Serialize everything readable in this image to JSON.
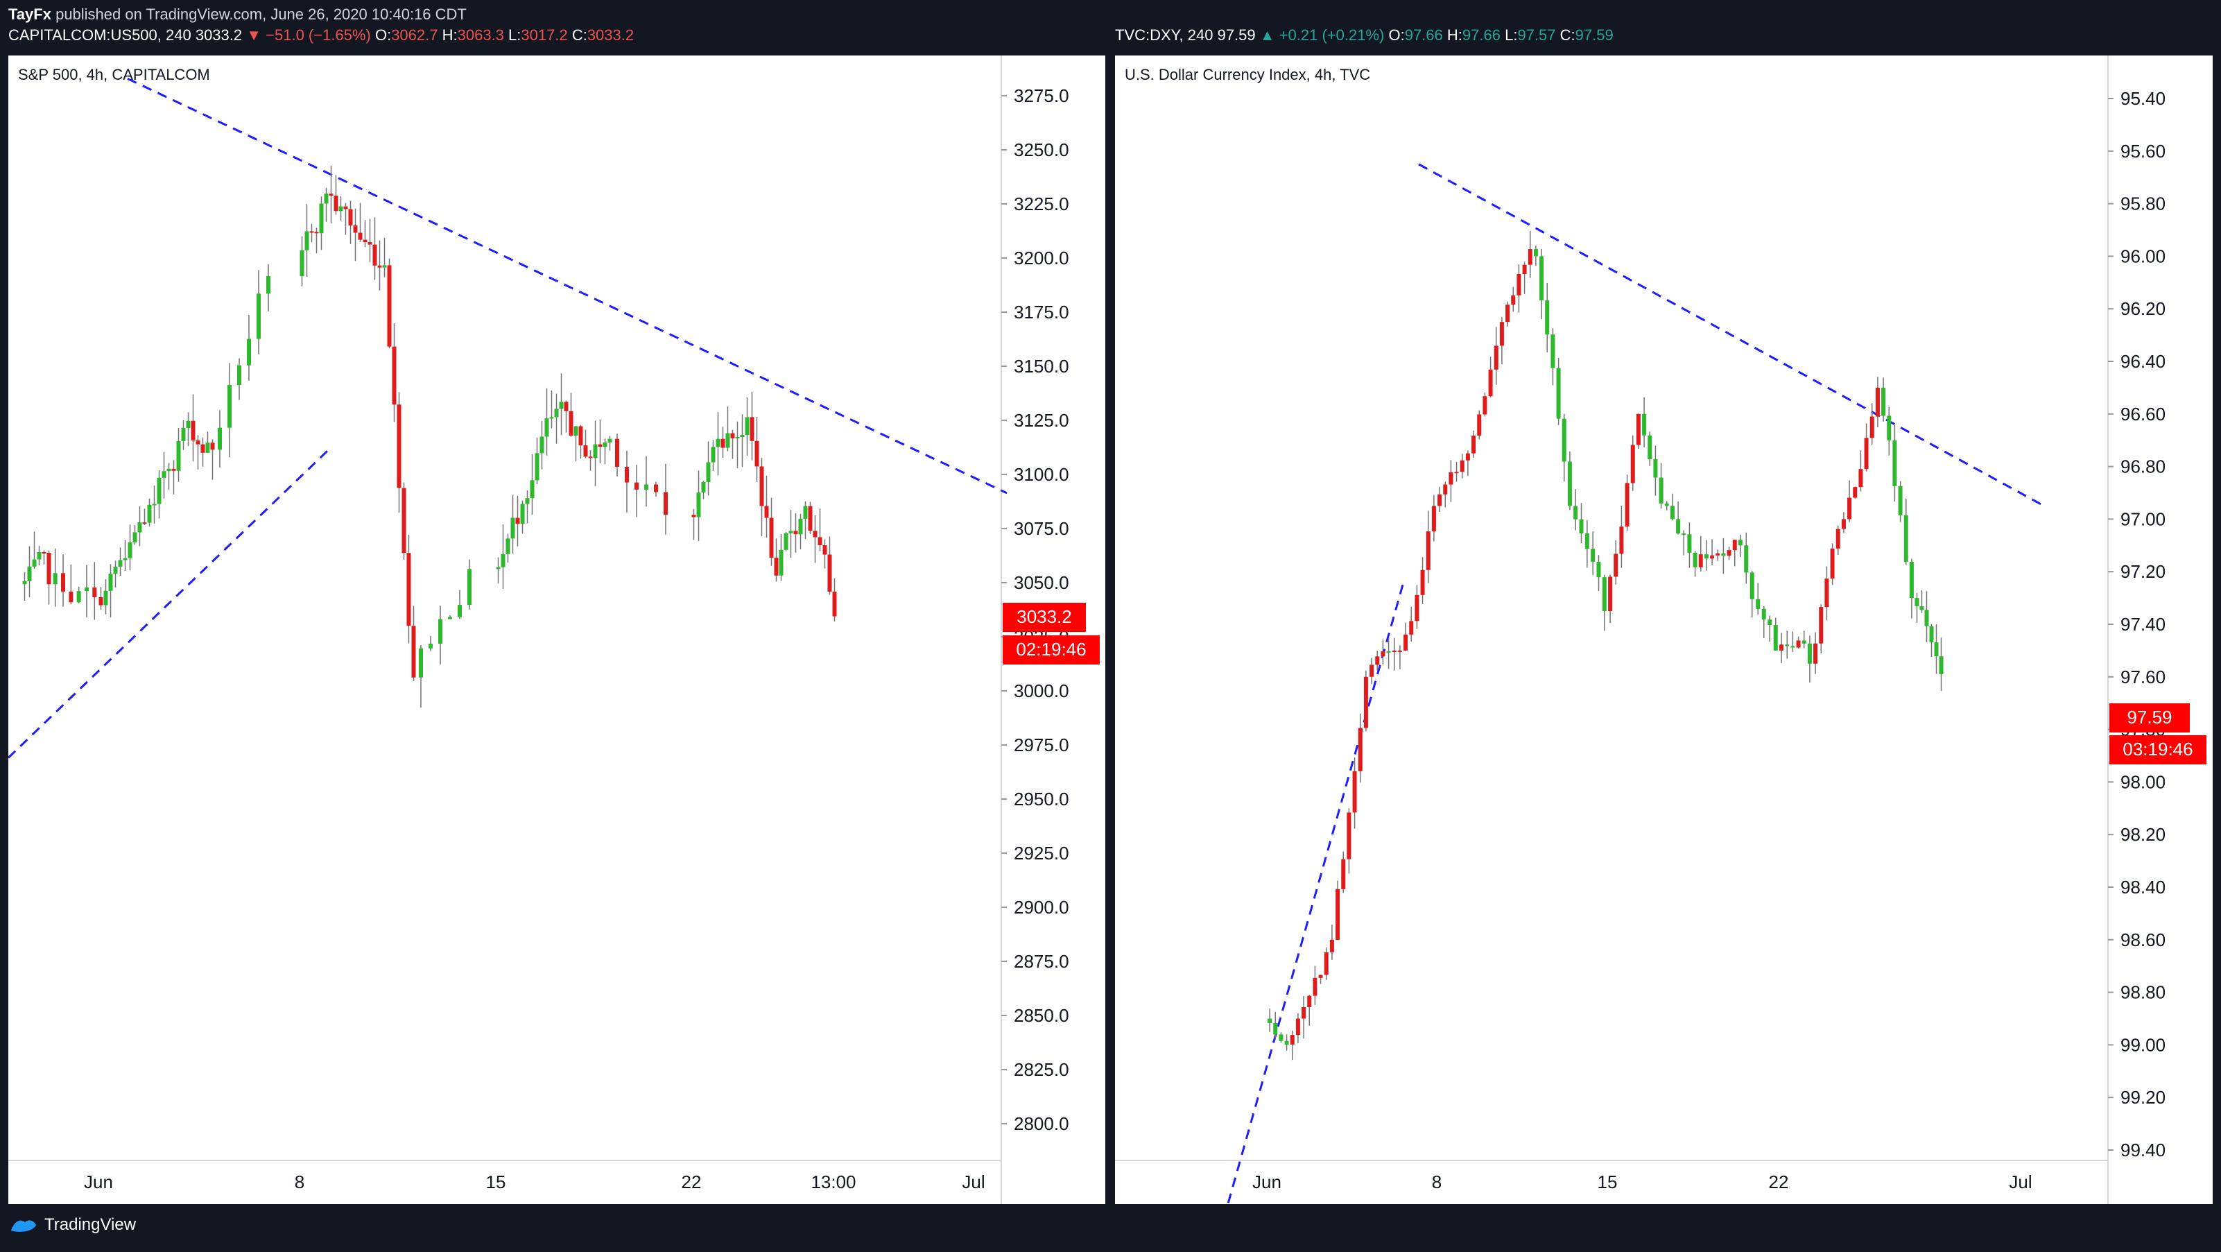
{
  "publisher": {
    "author": "TayFx",
    "text": "published on TradingView.com, June 26, 2020 10:40:16 CDT"
  },
  "footer": {
    "brand": "TradingView"
  },
  "colors": {
    "up": "#2db82d",
    "down": "#e01b1b",
    "trendline": "#1c1cff",
    "tag_bg": "#ff0000",
    "background": "#ffffff",
    "frame": "#131722"
  },
  "charts": [
    {
      "header": {
        "symbol": "CAPITALCOM:US500, 240",
        "last": "3033.2",
        "direction": "down",
        "change": "−51.0 (−1.65%)",
        "o_label": "O:",
        "o": "3062.7",
        "h_label": "H:",
        "h": "3063.3",
        "l_label": "L:",
        "l": "3017.2",
        "c_label": "C:",
        "c": "3033.2"
      },
      "title": "S&P 500, 4h, CAPITALCOM",
      "price_tag": "3033.2",
      "countdown_tag": "02:19:46",
      "y_ticks": [
        "3275.0",
        "3250.0",
        "3225.0",
        "3200.0",
        "3175.0",
        "3150.0",
        "3125.0",
        "3100.0",
        "3075.0",
        "3050.0",
        "3025.0",
        "3000.0",
        "2975.0",
        "2950.0",
        "2925.0",
        "2900.0",
        "2875.0",
        "2850.0",
        "2825.0",
        "2800.0"
      ],
      "x_ticks": [
        "Jun",
        "8",
        "15",
        "22",
        "13:00",
        "Jul"
      ]
    },
    {
      "header": {
        "symbol": "TVC:DXY, 240",
        "last": "97.59",
        "direction": "up",
        "change": "+0.21 (+0.21%)",
        "o_label": "O:",
        "o": "97.66",
        "h_label": "H:",
        "h": "97.66",
        "l_label": "L:",
        "l": "97.57",
        "c_label": "C:",
        "c": "97.59"
      },
      "title": "U.S. Dollar Currency Index, 4h, TVC",
      "price_tag": "97.59",
      "countdown_tag": "03:19:46",
      "y_ticks": [
        "95.40",
        "95.60",
        "95.80",
        "96.00",
        "96.20",
        "96.40",
        "96.60",
        "96.80",
        "97.00",
        "97.20",
        "97.40",
        "97.60",
        "97.80",
        "98.00",
        "98.20",
        "98.40",
        "98.60",
        "98.80",
        "99.00",
        "99.20",
        "99.40"
      ],
      "x_ticks": [
        "Jun",
        "8",
        "15",
        "22",
        "Jul"
      ]
    }
  ],
  "chart_data": [
    {
      "type": "candlestick",
      "title": "S&P 500, 4h, CAPITALCOM",
      "ylim": [
        2785,
        3293
      ],
      "y_scale": "linear",
      "x_ticks": [
        "Jun",
        "8",
        "15",
        "22",
        "13:00",
        "Jul"
      ],
      "candles_close_path": [
        {
          "date": "May 28",
          "close": 3048
        },
        {
          "date": "May 29",
          "close": 3042
        },
        {
          "date": "Jun 1",
          "close": 3060
        },
        {
          "date": "Jun 2",
          "close": 3085
        },
        {
          "date": "Jun 3",
          "close": 3120
        },
        {
          "date": "Jun 4",
          "close": 3110
        },
        {
          "date": "Jun 5",
          "close": 3190
        },
        {
          "date": "Jun 8",
          "close": 3228
        },
        {
          "date": "Jun 9",
          "close": 3210
        },
        {
          "date": "Jun 10",
          "close": 3195
        },
        {
          "date": "Jun 11",
          "close": 3005
        },
        {
          "date": "Jun 12",
          "close": 3055
        },
        {
          "date": "Jun 15",
          "close": 3085
        },
        {
          "date": "Jun 16",
          "close": 3125
        },
        {
          "date": "Jun 17",
          "close": 3112
        },
        {
          "date": "Jun 18",
          "close": 3115
        },
        {
          "date": "Jun 19",
          "close": 3080
        },
        {
          "date": "Jun 22",
          "close": 3115
        },
        {
          "date": "Jun 23",
          "close": 3125
        },
        {
          "date": "Jun 24",
          "close": 3052
        },
        {
          "date": "Jun 25",
          "close": 3084
        },
        {
          "date": "Jun 26",
          "close": 3033.2
        }
      ],
      "trendlines": [
        {
          "style": "dashed",
          "from": {
            "date": "May 27",
            "price": 2968
          },
          "to": {
            "date": "Jun 9",
            "price": 3110
          }
        },
        {
          "style": "dashed",
          "from": {
            "date": "Jun 2",
            "price": 3281
          },
          "to": {
            "date": "Jun 30",
            "price": 3090
          }
        }
      ]
    },
    {
      "type": "candlestick",
      "title": "U.S. Dollar Currency Index, 4h, TVC",
      "ylim": [
        95.25,
        99.45
      ],
      "y_scale": "inverted",
      "x_ticks": [
        "Jun",
        "8",
        "15",
        "22",
        "Jul"
      ],
      "candles_close_path": [
        {
          "date": "Jun 1",
          "close": 98.9
        },
        {
          "date": "Jun 2",
          "close": 98.6
        },
        {
          "date": "Jun 3",
          "close": 97.6
        },
        {
          "date": "Jun 4",
          "close": 97.5
        },
        {
          "date": "Jun 5",
          "close": 96.95
        },
        {
          "date": "Jun 8",
          "close": 96.75
        },
        {
          "date": "Jun 9",
          "close": 96.25
        },
        {
          "date": "Jun 10",
          "close": 96.0
        },
        {
          "date": "Jun 11",
          "close": 96.95
        },
        {
          "date": "Jun 12",
          "close": 97.35
        },
        {
          "date": "Jun 15",
          "close": 96.6
        },
        {
          "date": "Jun 16",
          "close": 97.0
        },
        {
          "date": "Jun 17",
          "close": 97.15
        },
        {
          "date": "Jun 18",
          "close": 97.1
        },
        {
          "date": "Jun 19",
          "close": 97.5
        },
        {
          "date": "Jun 22",
          "close": 97.55
        },
        {
          "date": "Jun 23",
          "close": 97.0
        },
        {
          "date": "Jun 24",
          "close": 96.5
        },
        {
          "date": "Jun 25",
          "close": 97.3
        },
        {
          "date": "Jun 26",
          "close": 97.59
        }
      ],
      "trendlines": [
        {
          "style": "dashed",
          "from": {
            "date": "Jun 5",
            "price": 97.25
          },
          "to": {
            "date": "May 31",
            "price": 99.8
          }
        },
        {
          "style": "dashed",
          "from": {
            "date": "Jun 6",
            "price": 95.65
          },
          "to": {
            "date": "Jun 29",
            "price": 96.95
          }
        }
      ]
    }
  ]
}
